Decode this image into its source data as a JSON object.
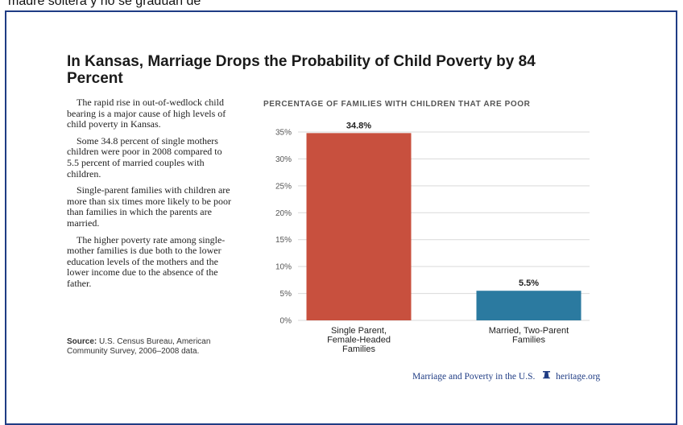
{
  "page": {
    "top_caption": "madre soltera y no se gradúan de",
    "title": "In Kansas, Marriage Drops the Probability of Child Poverty by 84 Percent",
    "paragraphs": [
      "The rapid rise in out-of-wedlock child bearing is a major cause of high levels of child poverty in Kansas.",
      "Some 34.8 percent of single mothers children were poor in 2008 compared to 5.5 percent of married couples with children.",
      "Single-parent families with children are more than six times more likely to be poor than families in which the parents are married.",
      "The higher poverty rate among single-mother families is due both to the lower education levels of the mothers and the lower income due to the absence of the father."
    ],
    "source_label": "Source:",
    "source_text": "U.S. Census Bureau, American Community Survey, 2006–2008 data.",
    "footer_text": "Marriage and Poverty in the U.S.",
    "footer_site": "heritage.org",
    "footer_icon": "liberty-bell-icon"
  },
  "chart_data": {
    "type": "bar",
    "title": "PERCENTAGE OF FAMILIES WITH CHILDREN THAT ARE POOR",
    "categories": [
      "Single Parent, Female-Headed Families",
      "Married, Two-Parent Families"
    ],
    "category_lines": [
      [
        "Single Parent,",
        "Female-Headed",
        "Families"
      ],
      [
        "Married, Two-Parent",
        "Families"
      ]
    ],
    "values": [
      34.8,
      5.5
    ],
    "data_labels": [
      "34.8%",
      "5.5%"
    ],
    "colors": [
      "#c8503e",
      "#2b7aa0"
    ],
    "ylim": [
      0,
      35
    ],
    "yticks": [
      0,
      5,
      10,
      15,
      20,
      25,
      30,
      35
    ],
    "ytick_labels": [
      "0%",
      "5%",
      "10%",
      "15%",
      "20%",
      "25%",
      "30%",
      "35%"
    ],
    "grid": true,
    "xlabel": "",
    "ylabel": ""
  }
}
